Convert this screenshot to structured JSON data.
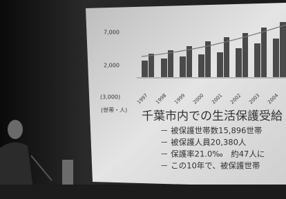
{
  "screen": {
    "axis_labels": [
      "7,000",
      "2,000",
      "(3,000)"
    ],
    "years": [
      "1997",
      "1998",
      "1999",
      "2000",
      "2001",
      "2002",
      "2003",
      "2004"
    ],
    "unit": "(世帯・人)",
    "title": "千葉市内での生活保護受給",
    "bullets": [
      "－ 被保護世帯数15,896世帯",
      "－ 被保護人員20,380人",
      "－ 保護率21.0‰　約47人に",
      "－ この10年で、被保護世帯"
    ]
  }
}
